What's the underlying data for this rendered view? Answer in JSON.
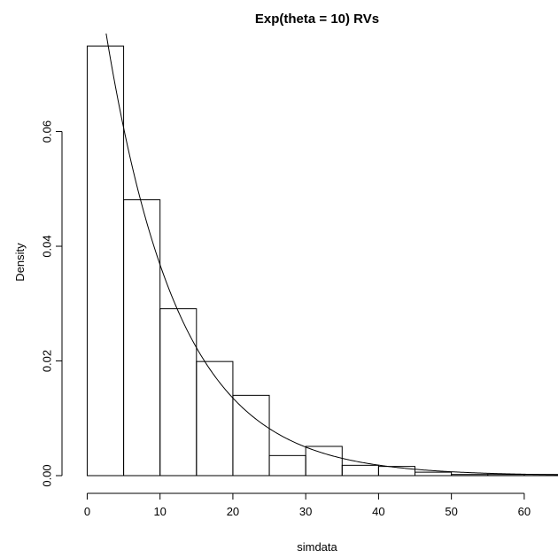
{
  "chart_data": {
    "type": "bar",
    "title": "Exp(theta = 10) RVs",
    "xlabel": "simdata",
    "ylabel": "Density",
    "xlim": [
      -2,
      65
    ],
    "ylim": [
      0,
      0.078
    ],
    "grid": false,
    "x_ticks": [
      0,
      10,
      20,
      30,
      40,
      50,
      60
    ],
    "x_tick_labels": [
      "0",
      "10",
      "20",
      "30",
      "40",
      "50",
      "60"
    ],
    "y_ticks": [
      0,
      0.02,
      0.04,
      0.06
    ],
    "y_tick_labels": [
      "0.00",
      "0.02",
      "0.04",
      "0.06"
    ],
    "bin_edges": [
      0,
      5,
      10,
      15,
      20,
      25,
      30,
      35,
      40,
      45,
      50,
      55,
      60,
      65
    ],
    "bin_heights": [
      0.0749,
      0.0481,
      0.0291,
      0.0199,
      0.014,
      0.0035,
      0.0051,
      0.0018,
      0.0016,
      0.0006,
      0.0002,
      0.0002,
      0.0002
    ],
    "density_curve": {
      "type": "line",
      "function": "exponential",
      "rate": 0.1,
      "x_range": [
        0,
        65
      ]
    }
  }
}
